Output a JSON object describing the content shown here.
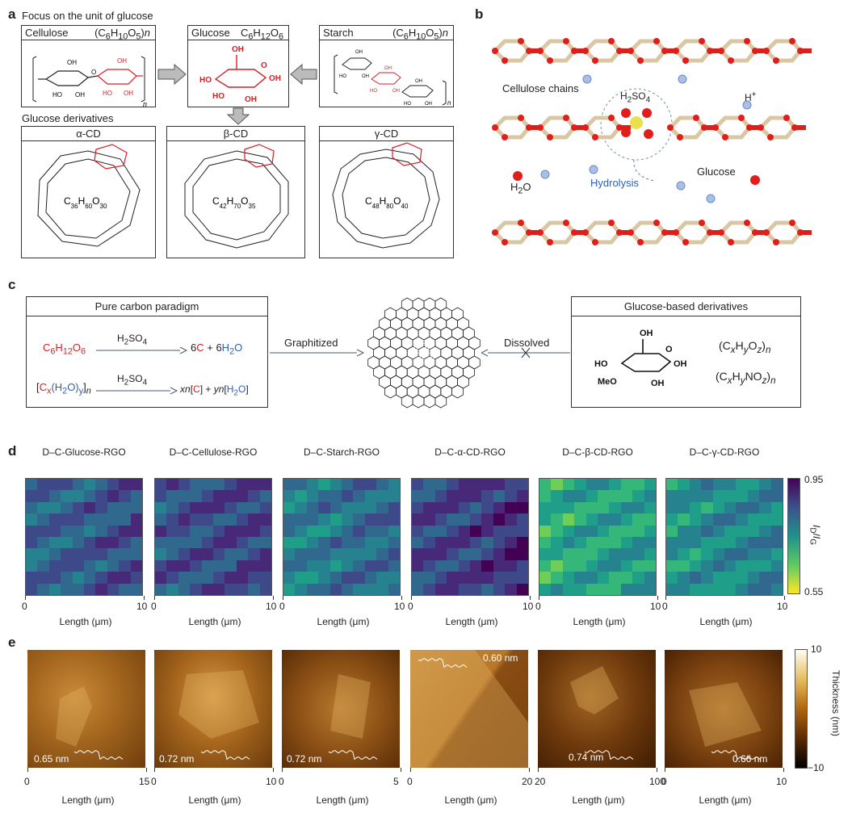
{
  "panel_a": {
    "label": "a",
    "focus_title": "Focus on the unit of glucose",
    "derivatives_title": "Glucose derivatives",
    "cellulose": {
      "name": "Cellulose",
      "formula": "(C6H10O5)n"
    },
    "glucose": {
      "name": "Glucose",
      "formula": "C6H12O6"
    },
    "starch": {
      "name": "Starch",
      "formula": "(C6H10O5)n"
    },
    "alpha_cd": {
      "name": "α-CD",
      "formula": "C36H60O30"
    },
    "beta_cd": {
      "name": "β-CD",
      "formula": "C42H70O35"
    },
    "gamma_cd": {
      "name": "γ-CD",
      "formula": "C48H80O40"
    }
  },
  "panel_b": {
    "label": "b",
    "cellulose_chains": "Cellulose chains",
    "h2so4": "H2SO4",
    "hplus": "H+",
    "h2o": "H2O",
    "hydrolysis": "Hydrolysis",
    "glucose": "Glucose"
  },
  "panel_c": {
    "label": "c",
    "left_title": "Pure carbon paradigm",
    "eq1_reactant": "C6H12O6",
    "eq1_reagent": "H2SO4",
    "eq1_product": "6C + 6H2O",
    "eq2_reactant": "[Cx(H2O)y]n",
    "eq2_reagent": "H2SO4",
    "eq2_product": "xn[C] + yn[H2O]",
    "graphitized": "Graphitized",
    "dissolved": "Dissolved",
    "right_title": "Glucose-based derivatives",
    "formula1": "(CxHyOz)n",
    "formula2": "(CxHyNOz)n",
    "meo": "MeO",
    "oh_labels": [
      "OH",
      "HO",
      "OH",
      "OH"
    ]
  },
  "panel_d": {
    "label": "d",
    "titles": [
      "D–C-Glucose-RGO",
      "D–C-Cellulose-RGO",
      "D–C-Starch-RGO",
      "D–C-α-CD-RGO",
      "D–C-β-CD-RGO",
      "D–C-γ-CD-RGO"
    ],
    "xlabel": "Length (μm)",
    "xtick_min": "0",
    "xtick_max": "10",
    "colorbar_label": "ID/IG",
    "colorbar_max": "0.95",
    "colorbar_min": "0.55",
    "mean_levels": [
      0.84,
      0.86,
      0.8,
      0.88,
      0.72,
      0.76
    ],
    "colors": {
      "low": "#fde725",
      "mid": "#21918c",
      "high": "#440154"
    }
  },
  "panel_e": {
    "label": "e",
    "thickness_labels": [
      "0.65 nm",
      "0.72 nm",
      "0.72 nm",
      "0.60 nm",
      "0.74 nm",
      "0.66 nm"
    ],
    "xticks": [
      [
        "0",
        "15"
      ],
      [
        "0",
        "10"
      ],
      [
        "0",
        "5"
      ],
      [
        "0",
        "20"
      ],
      [
        "20",
        "100"
      ],
      [
        "0",
        "10"
      ]
    ],
    "xlabel": "Length (μm)",
    "colorbar_label": "Thickness (nm)",
    "colorbar_max": "10",
    "colorbar_min": "−10"
  }
}
